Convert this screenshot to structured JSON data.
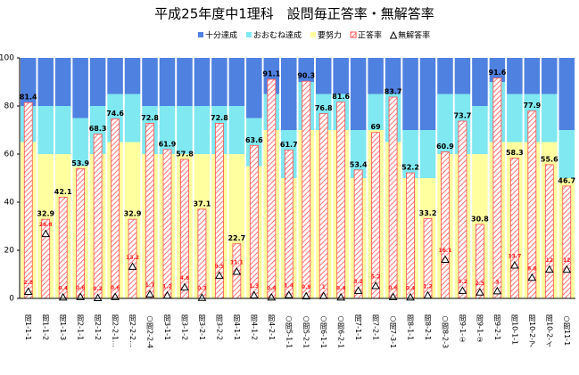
{
  "chart_data": {
    "type": "bar",
    "title": "平成25年度中1理科　設問毎正答率・無解答率",
    "categories": [
      "問1-1-1",
      "問1-1-2",
      "問1-1-3",
      "問2-1-1",
      "問2-1-2",
      "問2-2-1…",
      "問2-2-2…",
      "○問2-2-4",
      "問3-1-1",
      "問3-1-2",
      "問3-2-1",
      "問3-2-2",
      "問4-1-1",
      "問4-1-2",
      "問4-2-1",
      "○問5-1-1",
      "○問5-2-1",
      "○問6-1-1",
      "○問6-2-1",
      "問7-1-1",
      "問7-2-1",
      "○問7-3-1",
      "問8-1-1",
      "問8-2-1",
      "○問8-2-3",
      "問9-1-①",
      "問9-1-②",
      "問9-2-1",
      "問10-1-1",
      "問10-2-ア",
      "問10-2-イ",
      "○問11-1"
    ],
    "series": [
      {
        "name": "十分達成",
        "color": "#4f81e0",
        "kind": "band",
        "values": [
          20,
          20,
          20,
          25,
          20,
          15,
          15,
          20,
          20,
          20,
          20,
          20,
          20,
          25,
          15,
          30,
          10,
          15,
          15,
          30,
          15,
          15,
          30,
          30,
          15,
          15,
          20,
          10,
          15,
          15,
          15,
          30
        ]
      },
      {
        "name": "おおむね達成",
        "color": "#7fe8f0",
        "kind": "band",
        "values": [
          15,
          20,
          20,
          20,
          20,
          20,
          20,
          20,
          20,
          20,
          20,
          20,
          20,
          20,
          15,
          20,
          20,
          15,
          15,
          20,
          15,
          20,
          20,
          20,
          25,
          25,
          20,
          25,
          20,
          20,
          20,
          20
        ]
      },
      {
        "name": "要努力",
        "color": "#ffffa0",
        "kind": "band",
        "values": [
          65,
          60,
          60,
          55,
          60,
          65,
          65,
          60,
          60,
          60,
          60,
          60,
          60,
          55,
          70,
          50,
          70,
          70,
          70,
          50,
          70,
          65,
          50,
          50,
          60,
          60,
          60,
          65,
          65,
          65,
          65,
          50
        ]
      },
      {
        "name": "正答率",
        "color": "#ff5050",
        "kind": "bar",
        "values": [
          81.4,
          32.9,
          42.1,
          53.9,
          68.3,
          74.6,
          32.9,
          72.8,
          61.9,
          57.8,
          37.1,
          72.8,
          22.7,
          63.6,
          91.1,
          61.7,
          90.3,
          76.8,
          81.6,
          53.4,
          69.0,
          83.7,
          52.2,
          33.2,
          60.9,
          73.7,
          30.8,
          91.6,
          58.3,
          77.9,
          55.6,
          46.7
        ]
      },
      {
        "name": "無解答率",
        "color": "#000000",
        "kind": "marker",
        "values": [
          2.8,
          26.8,
          0.4,
          0.6,
          0.2,
          0.6,
          13.2,
          1.7,
          1.2,
          4.6,
          0.3,
          9.5,
          11.1,
          1.3,
          0.4,
          1.4,
          0.9,
          1.0,
          0.4,
          3.2,
          5.2,
          0.6,
          0.4,
          1.2,
          16.1,
          3.2,
          2.5,
          3.0,
          13.7,
          8.6,
          12.0,
          12.0
        ]
      }
    ],
    "ylim": [
      0,
      100
    ],
    "yticks": [
      0,
      20,
      40,
      60,
      80,
      100
    ]
  }
}
